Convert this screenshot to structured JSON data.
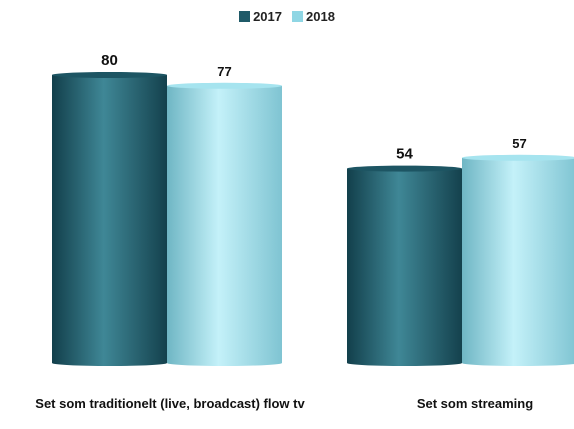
{
  "legend": {
    "series": [
      {
        "name": "2017",
        "color": "#1f5a68"
      },
      {
        "name": "2018",
        "color": "#8fd6e4"
      }
    ]
  },
  "chart_data": {
    "type": "bar",
    "style": "3d-cylinder",
    "categories": [
      "Set som traditionelt (live, broadcast) flow tv",
      "Set som streaming"
    ],
    "series": [
      {
        "name": "2017",
        "values": [
          80,
          54
        ]
      },
      {
        "name": "2018",
        "values": [
          77,
          57
        ]
      }
    ],
    "data_labels": true,
    "legend_position": "top-center",
    "grid": false,
    "ylim": [
      0,
      85
    ]
  }
}
